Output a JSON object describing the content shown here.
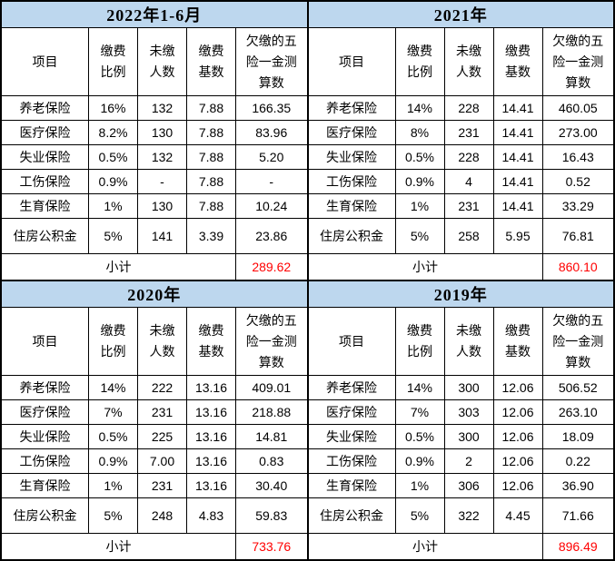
{
  "style": {
    "year_header_bg": "#BDD7EE",
    "subtotal_value_color": "#FF0000",
    "border_color": "#000000",
    "text_color": "#000000"
  },
  "columns": [
    "项目",
    "缴费比例",
    "未缴人数",
    "缴费基数",
    "欠缴的五险一金测算数"
  ],
  "subtotal_label": "小计",
  "tables": [
    {
      "title": "2022年1-6月",
      "rows": [
        [
          "养老保险",
          "16%",
          "132",
          "7.88",
          "166.35"
        ],
        [
          "医疗保险",
          "8.2%",
          "130",
          "7.88",
          "83.96"
        ],
        [
          "失业保险",
          "0.5%",
          "132",
          "7.88",
          "5.20"
        ],
        [
          "工伤保险",
          "0.9%",
          "-",
          "7.88",
          "-"
        ],
        [
          "生育保险",
          "1%",
          "130",
          "7.88",
          "10.24"
        ],
        [
          "住房公积金",
          "5%",
          "141",
          "3.39",
          "23.86"
        ]
      ],
      "subtotal": "289.62"
    },
    {
      "title": "2021年",
      "rows": [
        [
          "养老保险",
          "14%",
          "228",
          "14.41",
          "460.05"
        ],
        [
          "医疗保险",
          "8%",
          "231",
          "14.41",
          "273.00"
        ],
        [
          "失业保险",
          "0.5%",
          "228",
          "14.41",
          "16.43"
        ],
        [
          "工伤保险",
          "0.9%",
          "4",
          "14.41",
          "0.52"
        ],
        [
          "生育保险",
          "1%",
          "231",
          "14.41",
          "33.29"
        ],
        [
          "住房公积金",
          "5%",
          "258",
          "5.95",
          "76.81"
        ]
      ],
      "subtotal": "860.10"
    },
    {
      "title": "2020年",
      "rows": [
        [
          "养老保险",
          "14%",
          "222",
          "13.16",
          "409.01"
        ],
        [
          "医疗保险",
          "7%",
          "231",
          "13.16",
          "218.88"
        ],
        [
          "失业保险",
          "0.5%",
          "225",
          "13.16",
          "14.81"
        ],
        [
          "工伤保险",
          "0.9%",
          "7.00",
          "13.16",
          "0.83"
        ],
        [
          "生育保险",
          "1%",
          "231",
          "13.16",
          "30.40"
        ],
        [
          "住房公积金",
          "5%",
          "248",
          "4.83",
          "59.83"
        ]
      ],
      "subtotal": "733.76"
    },
    {
      "title": "2019年",
      "rows": [
        [
          "养老保险",
          "14%",
          "300",
          "12.06",
          "506.52"
        ],
        [
          "医疗保险",
          "7%",
          "303",
          "12.06",
          "263.10"
        ],
        [
          "失业保险",
          "0.5%",
          "300",
          "12.06",
          "18.09"
        ],
        [
          "工伤保险",
          "0.9%",
          "2",
          "12.06",
          "0.22"
        ],
        [
          "生育保险",
          "1%",
          "306",
          "12.06",
          "36.90"
        ],
        [
          "住房公积金",
          "5%",
          "322",
          "4.45",
          "71.66"
        ]
      ],
      "subtotal": "896.49"
    }
  ]
}
